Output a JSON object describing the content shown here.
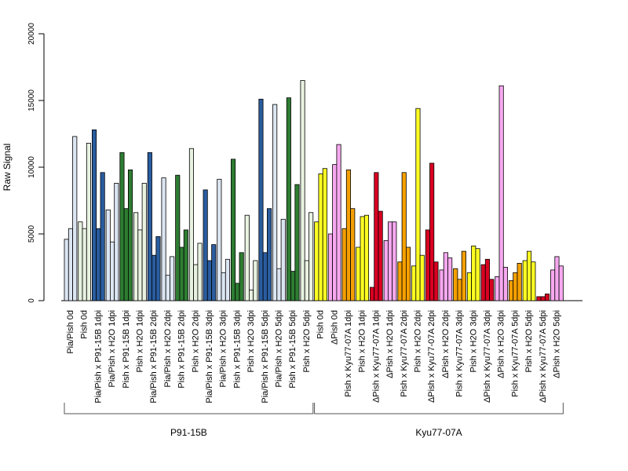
{
  "chart_data": {
    "type": "bar",
    "ylabel": "Raw Signal",
    "ylim": [
      0,
      20000
    ],
    "yticks": [
      "0",
      "5000",
      "10000",
      "15000",
      "20000"
    ],
    "grid": false,
    "legend": "none",
    "categories": [
      {
        "label": "Pia/Pish 0d",
        "color": "#dce6f2",
        "values": [
          4600,
          5400,
          12300
        ]
      },
      {
        "label": "Pish 0d",
        "color": "#e8f2e0",
        "values": [
          5900,
          5400,
          11800
        ]
      },
      {
        "label": "Pia/Pish x P91-15B 1dpi",
        "color": "#2a5d9f",
        "values": [
          12800,
          5400,
          9600
        ]
      },
      {
        "label": "Pia/Pish x H2O 1dpi",
        "color": "#dce6f2",
        "values": [
          6800,
          4400,
          8800
        ]
      },
      {
        "label": "Pish x P91-15B 1dpi",
        "color": "#2e7d32",
        "values": [
          11100,
          6900,
          9800
        ]
      },
      {
        "label": "Pish x H2O 1dpi",
        "color": "#e8f2e0",
        "values": [
          6600,
          5300,
          8800
        ]
      },
      {
        "label": "Pia/Pish x P91-15B 2dpi",
        "color": "#2a5d9f",
        "values": [
          11100,
          3400,
          4800
        ]
      },
      {
        "label": "Pia/Pish x H2O 2dpi",
        "color": "#dce6f2",
        "values": [
          9200,
          1900,
          3300
        ]
      },
      {
        "label": "Pish x P91-15B 2dpi",
        "color": "#2e7d32",
        "values": [
          9400,
          4000,
          5300
        ]
      },
      {
        "label": "Pish x H2O 2dpi",
        "color": "#e8f2e0",
        "values": [
          11400,
          2700,
          4300
        ]
      },
      {
        "label": "Pia/Pish x P91-15B 3dpi",
        "color": "#2a5d9f",
        "values": [
          8300,
          3000,
          4200
        ]
      },
      {
        "label": "Pia/Pish x H2O 3dpi",
        "color": "#dce6f2",
        "values": [
          9100,
          2100,
          3100
        ]
      },
      {
        "label": "Pish x P91-15B 3dpi",
        "color": "#2e7d32",
        "values": [
          10600,
          1300,
          3600
        ]
      },
      {
        "label": "Pish x H2O 3dpi",
        "color": "#e8f2e0",
        "values": [
          6400,
          800,
          3000
        ]
      },
      {
        "label": "Pia/Pish x P91-15B 5dpi",
        "color": "#2a5d9f",
        "values": [
          15100,
          3600,
          6900
        ]
      },
      {
        "label": "Pia/Pish x H2O 5dpi",
        "color": "#dce6f2",
        "values": [
          14700,
          2400,
          6100
        ]
      },
      {
        "label": "Pish x P91-15B 5dpi",
        "color": "#2e7d32",
        "values": [
          15200,
          2200,
          8700
        ]
      },
      {
        "label": "Pish x H2O 5dpi",
        "color": "#e8f2e0",
        "values": [
          16500,
          3000,
          6600
        ]
      },
      {
        "label": "Pish 0d",
        "color": "#ffff22",
        "values": [
          5900,
          9500,
          9900
        ]
      },
      {
        "label": "ΔPish 0d",
        "color": "#f7a8f0",
        "values": [
          5000,
          10200,
          11700
        ]
      },
      {
        "label": "Pish x Kyu77-07A 1dpi",
        "color": "#f5a000",
        "values": [
          5400,
          9800,
          6900
        ]
      },
      {
        "label": "Pish x H2O 1dpi",
        "color": "#ffff22",
        "values": [
          4000,
          6300,
          6400
        ]
      },
      {
        "label": "ΔPish x Kyu77-07A 1dpi",
        "color": "#d90021",
        "values": [
          1000,
          9600,
          6700
        ]
      },
      {
        "label": "ΔPish x H2O 1dpi",
        "color": "#f7a8f0",
        "values": [
          4500,
          5900,
          5900
        ]
      },
      {
        "label": "Pish x Kyu77-07A 2dpi",
        "color": "#f5a000",
        "values": [
          2900,
          9600,
          4000
        ]
      },
      {
        "label": "Pish x H2O 2dpi",
        "color": "#ffff22",
        "values": [
          2600,
          14400,
          3400
        ]
      },
      {
        "label": "ΔPish x Kyu77-07A 2dpi",
        "color": "#d90021",
        "values": [
          5300,
          10300,
          2900
        ]
      },
      {
        "label": "ΔPish x H2O 2dpi",
        "color": "#f7a8f0",
        "values": [
          2300,
          3600,
          3200
        ]
      },
      {
        "label": "Pish x Kyu77-07A 3dpi",
        "color": "#f5a000",
        "values": [
          2400,
          1600,
          3700
        ]
      },
      {
        "label": "Pish x H2O 3dpi",
        "color": "#ffff22",
        "values": [
          2100,
          4100,
          3900
        ]
      },
      {
        "label": "ΔPish x Kyu77-07A 3dpi",
        "color": "#d90021",
        "values": [
          2700,
          3100,
          1600
        ]
      },
      {
        "label": "ΔPish x H2O 3dpi",
        "color": "#f7a8f0",
        "values": [
          1800,
          16100,
          2500
        ]
      },
      {
        "label": "Pish x Kyu77-07A 5dpi",
        "color": "#f5a000",
        "values": [
          1500,
          2100,
          2800
        ]
      },
      {
        "label": "Pish x H2O 5dpi",
        "color": "#ffff22",
        "values": [
          3000,
          3700,
          2900
        ]
      },
      {
        "label": "ΔPish x Kyu77-07A 5dpi",
        "color": "#d90021",
        "values": [
          300,
          300,
          500
        ]
      },
      {
        "label": "ΔPish x H2O 5dpi",
        "color": "#f7a8f0",
        "values": [
          2300,
          3300,
          2600
        ]
      }
    ],
    "groups": [
      {
        "label": "P91-15B",
        "first": 0,
        "last": 17
      },
      {
        "label": "Kyu77-07A",
        "first": 18,
        "last": 35
      }
    ]
  }
}
